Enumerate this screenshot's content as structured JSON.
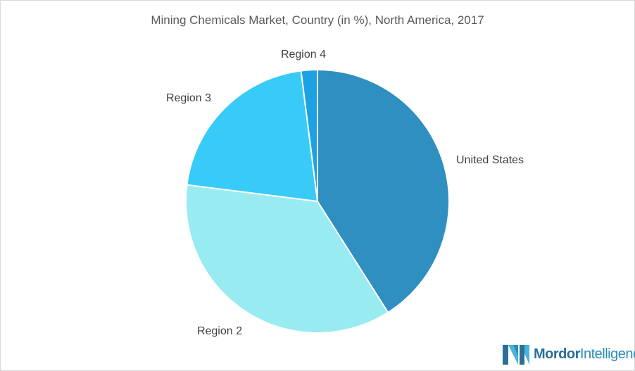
{
  "chart_data": {
    "type": "pie",
    "title": "Mining Chemicals Market, Country (in %), North America, 2017",
    "slices": [
      {
        "label": "United States",
        "value": 41,
        "color": "#2e8fc0"
      },
      {
        "label": "Region 2",
        "value": 36,
        "color": "#99ebf2"
      },
      {
        "label": "Region 3",
        "value": 21,
        "color": "#38cbf7"
      },
      {
        "label": "Region 4",
        "value": 2,
        "color": "#1ca2e3"
      }
    ]
  },
  "branding": {
    "logo_text_bold": "Mordor",
    "logo_text_rest": "Intelligence",
    "logo_icon": "mordor-logo-icon"
  }
}
